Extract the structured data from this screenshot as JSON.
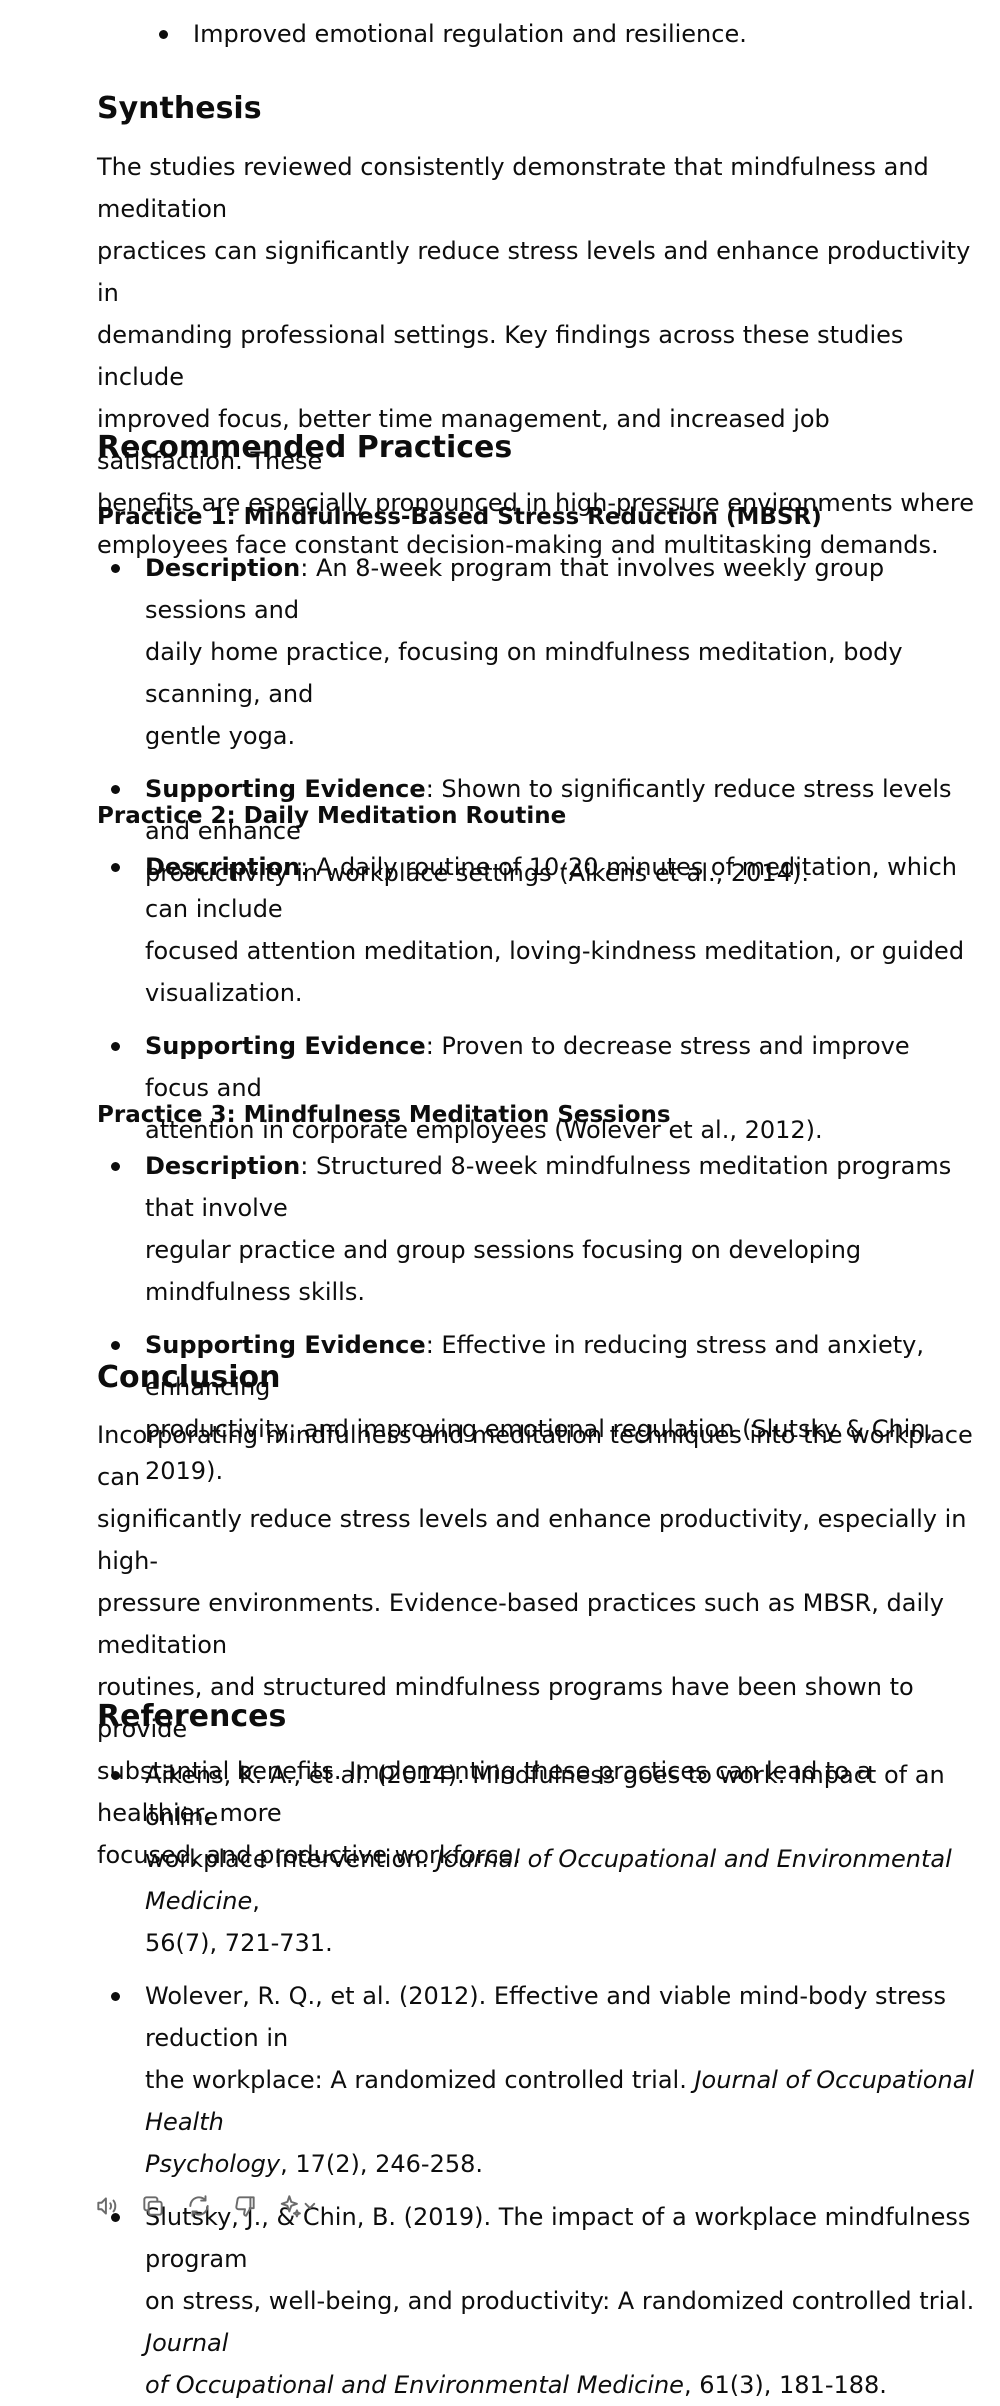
{
  "top_bullet": "Improved emotional regulation and resilience.",
  "synthesis": {
    "heading": "Synthesis",
    "lines": [
      "The studies reviewed consistently demonstrate that mindfulness and meditation",
      "practices can significantly reduce stress levels and enhance productivity in",
      "demanding professional settings. Key findings across these studies include",
      "improved focus, better time management, and increased job satisfaction. These",
      "benefits are especially pronounced in high-pressure environments where",
      "employees face constant decision-making and multitasking demands."
    ]
  },
  "recommended": {
    "heading": "Recommended Practices",
    "practices": [
      {
        "title": "Practice 1: Mindfulness-Based Stress Reduction (MBSR)",
        "description_label": "Description",
        "description_lines": [
          ": An 8-week program that involves weekly group sessions and",
          "daily home practice, focusing on mindfulness meditation, body scanning, and",
          "gentle yoga."
        ],
        "evidence_label": "Supporting Evidence",
        "evidence_lines": [
          ": Shown to significantly reduce stress levels and enhance",
          "productivity in workplace settings (Aikens et al., 2014)."
        ]
      },
      {
        "title": "Practice 2: Daily Meditation Routine",
        "description_label": "Description",
        "description_lines": [
          ": A daily routine of 10-20 minutes of meditation, which can include",
          "focused attention meditation, loving-kindness meditation, or guided",
          "visualization."
        ],
        "evidence_label": "Supporting Evidence",
        "evidence_lines": [
          ": Proven to decrease stress and improve focus and",
          "attention in corporate employees (Wolever et al., 2012)."
        ]
      },
      {
        "title": "Practice 3: Mindfulness Meditation Sessions",
        "description_label": "Description",
        "description_lines": [
          ": Structured 8-week mindfulness meditation programs that involve",
          "regular practice and group sessions focusing on developing mindfulness skills."
        ],
        "evidence_label": "Supporting Evidence",
        "evidence_lines": [
          ": Effective in reducing stress and anxiety, enhancing",
          "productivity, and improving emotional regulation (Slutsky & Chin, 2019)."
        ]
      }
    ]
  },
  "conclusion": {
    "heading": "Conclusion",
    "lines": [
      "Incorporating mindfulness and meditation techniques into the workplace can",
      "significantly reduce stress levels and enhance productivity, especially in high-",
      "pressure environments. Evidence-based practices such as MBSR, daily meditation",
      "routines, and structured mindfulness programs have been shown to provide",
      "substantial benefits. Implementing these practices can lead to a healthier, more",
      "focused, and productive workforce."
    ]
  },
  "references": {
    "heading": "References",
    "items": [
      {
        "line1": "Aikens, K. A., et al. (2014). Mindfulness goes to work: Impact of an online",
        "line2_plain": "workplace intervention. ",
        "line2_italic": "Journal of Occupational and Environmental Medicine",
        "line2_tail": ",",
        "line3_italic": "",
        "line3_plain": "56(7), 721-731."
      },
      {
        "line1": "Wolever, R. Q., et al. (2012). Effective and viable mind-body stress reduction in",
        "line2_plain": "the workplace: A randomized controlled trial. ",
        "line2_italic": "Journal of Occupational Health",
        "line2_tail": "",
        "line3_italic": "Psychology",
        "line3_plain": ", 17(2), 246-258."
      },
      {
        "line1": "Slutsky, J., & Chin, B. (2019). The impact of a workplace mindfulness program",
        "line2_plain": "on stress, well-being, and productivity: A randomized controlled trial. ",
        "line2_italic": "Journal",
        "line2_tail": "",
        "line3_italic": "of Occupational and Environmental Medicine",
        "line3_plain": ", 61(3), 181-188."
      }
    ]
  },
  "toolbar": {
    "icons": [
      "speaker-icon",
      "copy-icon",
      "regenerate-icon",
      "thumbs-down-icon",
      "sparkle-model-icon"
    ]
  }
}
